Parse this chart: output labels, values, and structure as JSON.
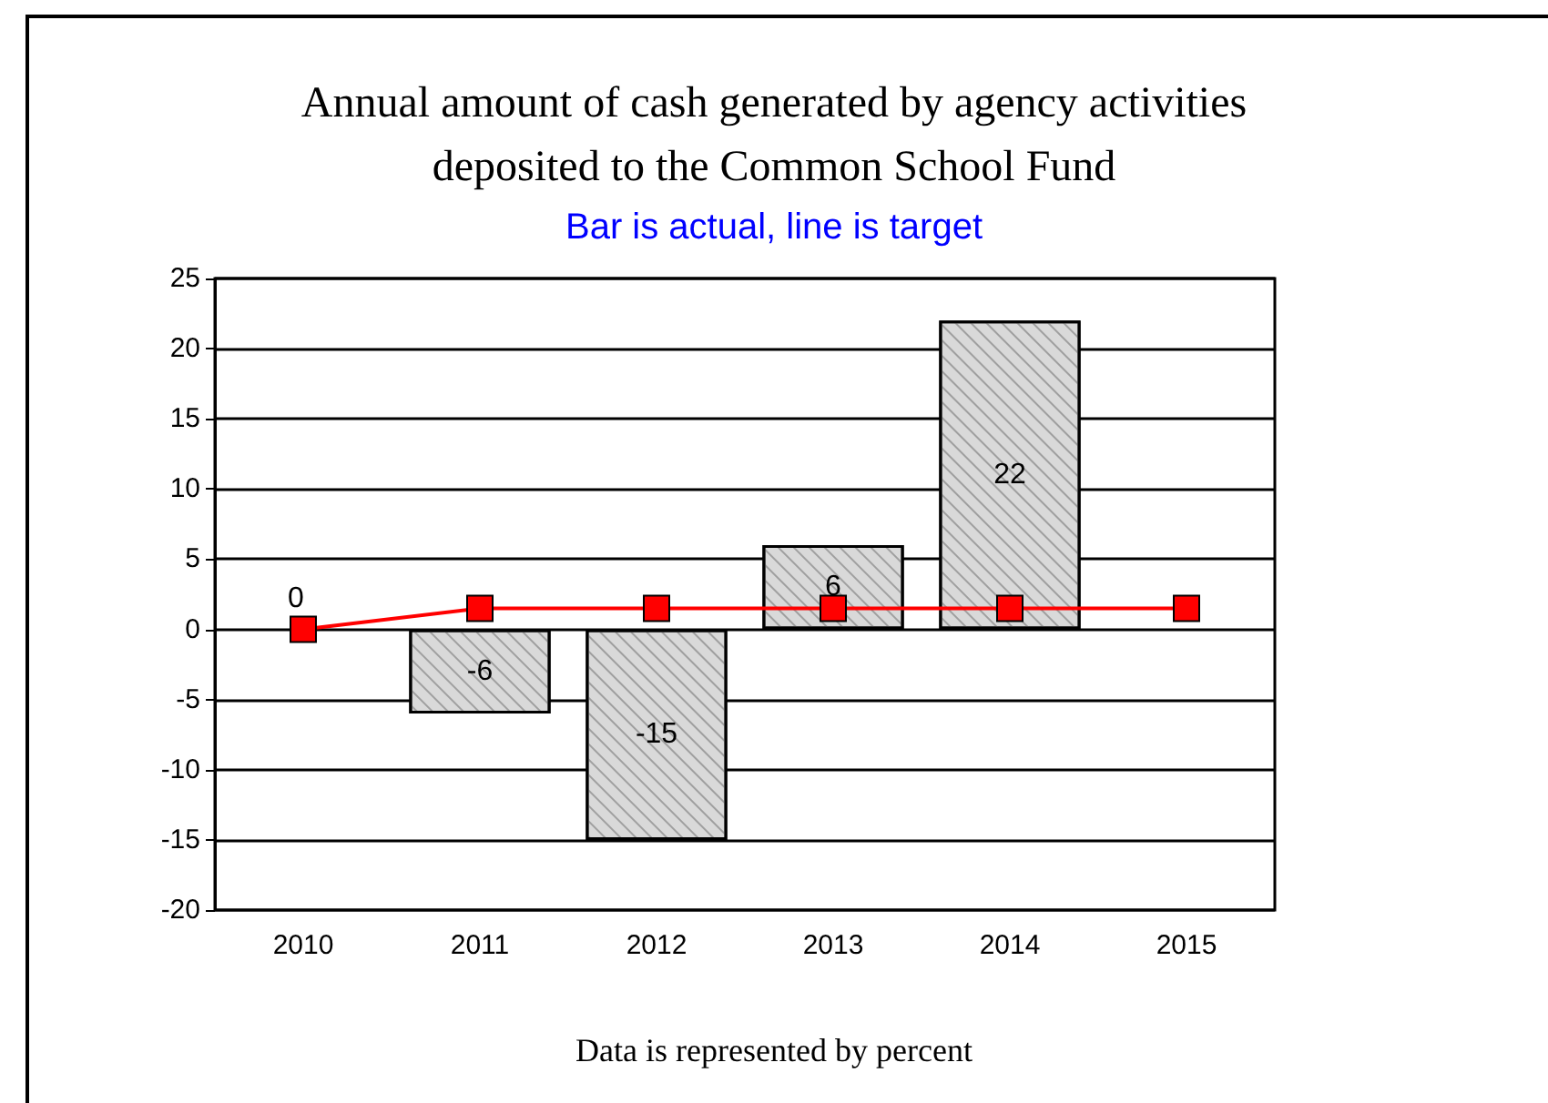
{
  "chart_data": {
    "type": "bar",
    "title": "Annual amount of cash generated by agency activities\ndeposited to the Common School Fund",
    "subtitle": "Bar is actual, line is target",
    "categories": [
      "2010",
      "2011",
      "2012",
      "2013",
      "2014",
      "2015"
    ],
    "series": [
      {
        "color": "#d9d9d9",
        "values": [
          0,
          -6,
          -15,
          6,
          22,
          null
        ],
        "value_labels": [
          "0",
          "-6",
          "-15",
          "6",
          "22",
          null
        ]
      },
      {
        "type": "line",
        "color": "#ff0000",
        "values": [
          0,
          1.5,
          1.5,
          1.5,
          1.5,
          1.5
        ],
        "marker": "square",
        "line_style": "solid"
      }
    ],
    "ylim": [
      -20,
      25
    ],
    "yticks": [
      -20,
      -15,
      -10,
      -5,
      0,
      5,
      10,
      15,
      20,
      25
    ],
    "grid": "y",
    "annotations": [
      "Data is represented by percent"
    ]
  }
}
